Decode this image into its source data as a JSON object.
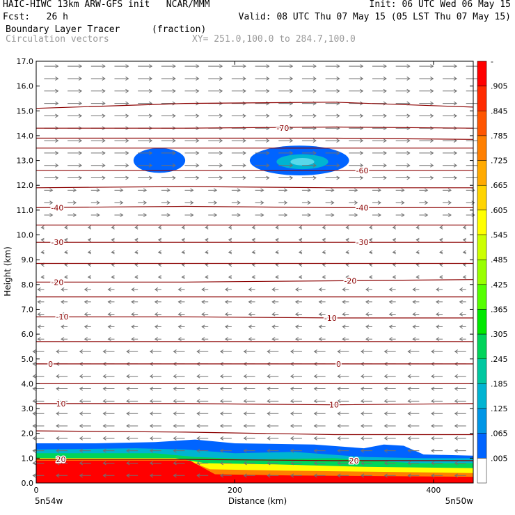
{
  "header": {
    "line1_left": "HAIC-HIWC 13km ARW-GFS init   NCAR/MMM",
    "line1_right": "Init: 06 UTC Wed 06 May 15",
    "line2_left": "Fcst:   26 h",
    "line2_right": "Valid: 08 UTC Thu 07 May 15 (05 LST Thu 07 May 15)",
    "field_name": "Boundary Layer Tracer",
    "field_units": "(fraction)",
    "vector_label": "Circulation vectors",
    "xy_label": "XY= 251.0,100.0 to 284.7,100.0"
  },
  "chart_data": {
    "type": "heatmap",
    "ylabel": "Height (km)",
    "xlabel": "Distance (km)",
    "ylim": [
      0,
      17
    ],
    "xlim": [
      0,
      440
    ],
    "yticks": [
      "0.0",
      "1.0",
      "2.0",
      "3.0",
      "4.0",
      "5.0",
      "6.0",
      "7.0",
      "8.0",
      "9.0",
      "10.0",
      "11.0",
      "12.0",
      "13.0",
      "14.0",
      "15.0",
      "16.0",
      "17.0"
    ],
    "xticks": [
      "0",
      "200",
      "400"
    ],
    "x_endpoints": [
      "5n54w",
      "5n50w"
    ],
    "colorbar": {
      "labels": [
        "-",
        ".905",
        ".845",
        ".785",
        ".725",
        ".665",
        ".605",
        ".545",
        ".485",
        ".425",
        ".365",
        ".305",
        ".245",
        ".185",
        ".125",
        ".065",
        ".005"
      ],
      "colors": [
        "#ff0000",
        "#ff2a00",
        "#ff5500",
        "#ff7f00",
        "#ffaa00",
        "#ffd400",
        "#ffff00",
        "#ccff00",
        "#99ff00",
        "#55ff00",
        "#00e800",
        "#00d45a",
        "#00c8a0",
        "#00b4d2",
        "#0096e6",
        "#0064ff",
        "#ffffff"
      ]
    },
    "contours": {
      "name": "temperature",
      "lines": [
        {
          "value": "-70",
          "y": [
            14.3,
            14.3,
            14.35,
            14.3
          ]
        },
        {
          "value": "-60",
          "y": [
            12.6,
            12.6,
            12.6,
            12.6
          ]
        },
        {
          "value": "-40",
          "y": [
            11.1,
            11.15,
            11.1,
            11.1
          ]
        },
        {
          "value": "-30",
          "y": [
            9.7,
            9.7,
            9.7,
            9.7
          ]
        },
        {
          "value": "-20",
          "y": [
            8.1,
            8.1,
            8.15,
            8.2
          ]
        },
        {
          "value": "-10",
          "y": [
            6.7,
            6.7,
            6.65,
            6.65
          ]
        },
        {
          "value": "0",
          "y": [
            4.8,
            4.8,
            4.8,
            4.8
          ]
        },
        {
          "value": "10",
          "y": [
            3.2,
            3.2,
            3.15,
            3.2
          ]
        },
        {
          "value": "20",
          "y": [
            0.95,
            0.95,
            0.9,
            0.9
          ]
        }
      ],
      "extra_lines": [
        {
          "y": [
            15.1,
            15.3,
            15.35,
            15.15
          ]
        },
        {
          "y": [
            13.9,
            13.9,
            13.9,
            13.85
          ]
        },
        {
          "y": [
            13.5,
            13.5,
            13.5,
            13.5
          ]
        },
        {
          "y": [
            11.9,
            11.95,
            11.9,
            11.9
          ]
        },
        {
          "y": [
            10.4,
            10.4,
            10.4,
            10.4
          ]
        },
        {
          "y": [
            8.85,
            8.85,
            8.85,
            8.85
          ]
        },
        {
          "y": [
            7.5,
            7.5,
            7.5,
            7.5
          ]
        },
        {
          "y": [
            5.7,
            5.7,
            5.7,
            5.7
          ]
        },
        {
          "y": [
            4.0,
            4.0,
            4.0,
            4.0
          ]
        },
        {
          "y": [
            2.1,
            2.05,
            1.95,
            1.95
          ]
        }
      ],
      "label_positions": [
        {
          "value": "-70",
          "x": 242,
          "y": 14.3
        },
        {
          "value": "-60",
          "x": 322,
          "y": 12.6
        },
        {
          "value": "-40",
          "x": 15,
          "y": 11.1
        },
        {
          "value": "-40",
          "x": 322,
          "y": 11.1
        },
        {
          "value": "-30",
          "x": 15,
          "y": 9.7
        },
        {
          "value": "-30",
          "x": 322,
          "y": 9.7
        },
        {
          "value": "-20",
          "x": 15,
          "y": 8.1
        },
        {
          "value": "-20",
          "x": 310,
          "y": 8.15
        },
        {
          "value": "-10",
          "x": 20,
          "y": 6.7
        },
        {
          "value": "-10",
          "x": 290,
          "y": 6.65
        },
        {
          "value": "0",
          "x": 12,
          "y": 4.8
        },
        {
          "value": "0",
          "x": 302,
          "y": 4.8
        },
        {
          "value": "10",
          "x": 20,
          "y": 3.2
        },
        {
          "value": "10",
          "x": 295,
          "y": 3.15
        },
        {
          "value": "20",
          "x": 20,
          "y": 0.95
        },
        {
          "value": "20",
          "x": 315,
          "y": 0.9
        }
      ]
    },
    "tracer_regions": [
      {
        "level": 0.005,
        "color": "#0064ff",
        "path": [
          [
            0,
            1.6
          ],
          [
            60,
            1.6
          ],
          [
            120,
            1.65
          ],
          [
            160,
            1.75
          ],
          [
            200,
            1.6
          ],
          [
            280,
            1.55
          ],
          [
            330,
            1.4
          ],
          [
            350,
            1.55
          ],
          [
            370,
            1.5
          ],
          [
            390,
            1.15
          ],
          [
            440,
            1.1
          ],
          [
            440,
            0
          ],
          [
            0,
            0
          ]
        ]
      },
      {
        "level": 0.065,
        "color": "#00b4d2",
        "path": [
          [
            0,
            1.35
          ],
          [
            100,
            1.4
          ],
          [
            150,
            1.35
          ],
          [
            200,
            1.2
          ],
          [
            260,
            1.25
          ],
          [
            330,
            1.05
          ],
          [
            390,
            1.0
          ],
          [
            440,
            1.0
          ],
          [
            440,
            0
          ],
          [
            0,
            0
          ]
        ]
      },
      {
        "level": 0.185,
        "color": "#00d45a",
        "path": [
          [
            0,
            1.2
          ],
          [
            120,
            1.2
          ],
          [
            160,
            1.05
          ],
          [
            220,
            0.95
          ],
          [
            300,
            1.0
          ],
          [
            380,
            0.8
          ],
          [
            440,
            0.8
          ],
          [
            440,
            0
          ],
          [
            0,
            0
          ]
        ]
      },
      {
        "level": 0.365,
        "color": "#ffff00",
        "path": [
          [
            0,
            1.0
          ],
          [
            140,
            1.0
          ],
          [
            170,
            0.8
          ],
          [
            240,
            0.75
          ],
          [
            330,
            0.65
          ],
          [
            440,
            0.6
          ],
          [
            440,
            0
          ],
          [
            0,
            0
          ]
        ]
      },
      {
        "level": 0.545,
        "color": "#ff7f00",
        "path": [
          [
            0,
            0.95
          ],
          [
            150,
            0.95
          ],
          [
            175,
            0.55
          ],
          [
            250,
            0.5
          ],
          [
            350,
            0.45
          ],
          [
            440,
            0.4
          ],
          [
            440,
            0
          ],
          [
            0,
            0
          ]
        ]
      },
      {
        "level": 0.785,
        "color": "#ff0000",
        "path": [
          [
            0,
            0.9
          ],
          [
            155,
            0.9
          ],
          [
            180,
            0.35
          ],
          [
            260,
            0.3
          ],
          [
            440,
            0.25
          ],
          [
            440,
            0
          ],
          [
            0,
            0
          ]
        ]
      }
    ],
    "blobs": [
      {
        "level": 0.005,
        "color": "#0064ff",
        "cx": 124,
        "cy": 13.0,
        "rx": 26,
        "ry": 0.5
      },
      {
        "level": 0.005,
        "color": "#0064ff",
        "cx": 265,
        "cy": 13.0,
        "rx": 50,
        "ry": 0.6
      },
      {
        "level": 0.065,
        "color": "#00b4d2",
        "cx": 268,
        "cy": 12.95,
        "rx": 26,
        "ry": 0.3
      },
      {
        "level": 0.125,
        "color": "#58d8ea",
        "cx": 268,
        "cy": 12.95,
        "rx": 12,
        "ry": 0.15
      }
    ]
  }
}
